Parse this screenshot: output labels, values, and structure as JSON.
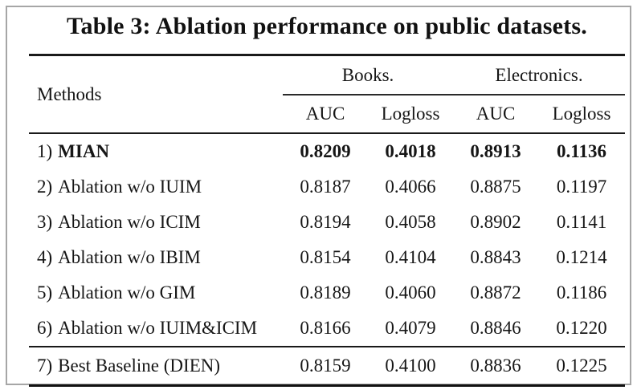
{
  "caption": "Table 3: Ablation performance on public datasets.",
  "table": {
    "methods_header": "Methods",
    "groups": [
      {
        "label": "Books.",
        "columns": [
          "AUC",
          "Logloss"
        ]
      },
      {
        "label": "Electronics.",
        "columns": [
          "AUC",
          "Logloss"
        ]
      }
    ],
    "rows": [
      {
        "num": "1)",
        "name": "MIAN",
        "values": [
          "0.8209",
          "0.4018",
          "0.8913",
          "0.1136"
        ]
      },
      {
        "num": "2)",
        "name": "Ablation w/o IUIM",
        "values": [
          "0.8187",
          "0.4066",
          "0.8875",
          "0.1197"
        ]
      },
      {
        "num": "3)",
        "name": "Ablation w/o ICIM",
        "values": [
          "0.8194",
          "0.4058",
          "0.8902",
          "0.1141"
        ]
      },
      {
        "num": "4)",
        "name": "Ablation w/o IBIM",
        "values": [
          "0.8154",
          "0.4104",
          "0.8843",
          "0.1214"
        ]
      },
      {
        "num": "5)",
        "name": "Ablation w/o GIM",
        "values": [
          "0.8189",
          "0.4060",
          "0.8872",
          "0.1186"
        ]
      },
      {
        "num": "6)",
        "name": "Ablation w/o IUIM&ICIM",
        "values": [
          "0.8166",
          "0.4079",
          "0.8846",
          "0.1220"
        ]
      },
      {
        "num": "7)",
        "name": "Best Baseline (DIEN)",
        "values": [
          "0.8159",
          "0.4100",
          "0.8836",
          "0.1225"
        ]
      }
    ]
  },
  "chart_data": {
    "type": "table",
    "title": "Table 3: Ablation performance on public datasets.",
    "columns": [
      "Methods",
      "Books. AUC",
      "Books. Logloss",
      "Electronics. AUC",
      "Electronics. Logloss"
    ],
    "rows": [
      [
        "1) MIAN",
        0.8209,
        0.4018,
        0.8913,
        0.1136
      ],
      [
        "2) Ablation w/o IUIM",
        0.8187,
        0.4066,
        0.8875,
        0.1197
      ],
      [
        "3) Ablation w/o ICIM",
        0.8194,
        0.4058,
        0.8902,
        0.1141
      ],
      [
        "4) Ablation w/o IBIM",
        0.8154,
        0.4104,
        0.8843,
        0.1214
      ],
      [
        "5) Ablation w/o GIM",
        0.8189,
        0.406,
        0.8872,
        0.1186
      ],
      [
        "6) Ablation w/o IUIM&ICIM",
        0.8166,
        0.4079,
        0.8846,
        0.122
      ],
      [
        "7) Best Baseline (DIEN)",
        0.8159,
        0.41,
        0.8836,
        0.1225
      ]
    ],
    "notes": "Row 1 (MIAN) is bold/best. Column groups: Books. and Electronics., each with AUC and Logloss."
  }
}
